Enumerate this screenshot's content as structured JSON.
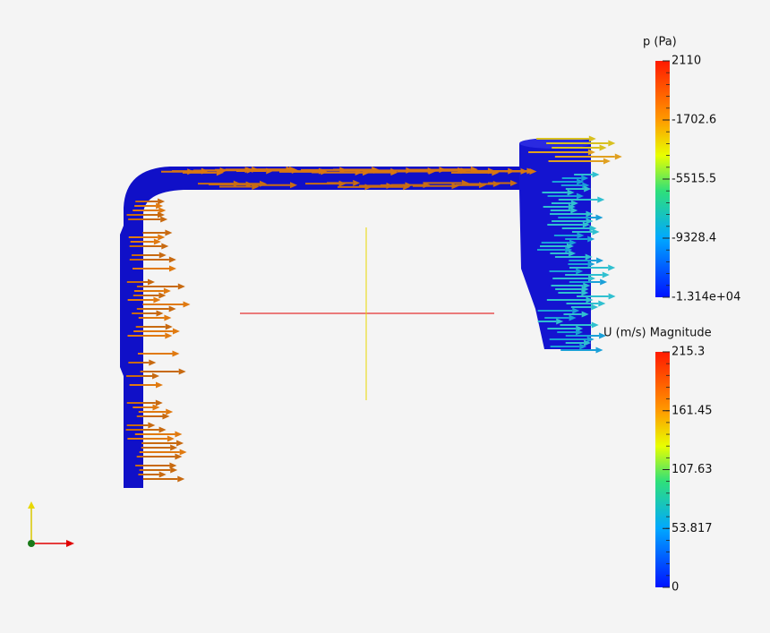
{
  "colorbars": [
    {
      "title": "p (Pa)",
      "labels": [
        "2110",
        "-1702.6",
        "-5515.5",
        "-9328.4",
        "-1.314e+04"
      ]
    },
    {
      "title": "U (m/s) Magnitude",
      "labels": [
        "215.3",
        "161.45",
        "107.63",
        "53.817",
        "0"
      ]
    }
  ]
}
